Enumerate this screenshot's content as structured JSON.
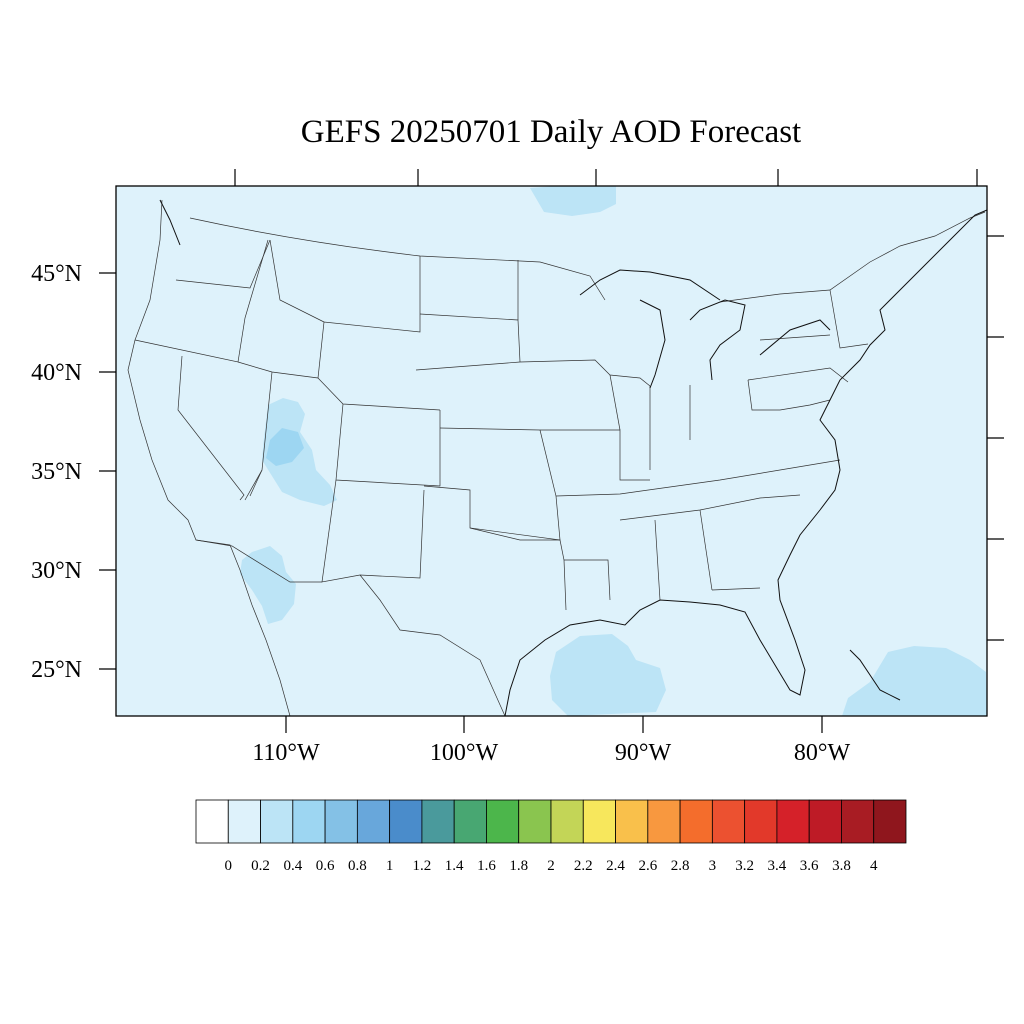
{
  "map": {
    "title": "GEFS 20250701 Daily AOD Forecast",
    "background_field": "0.2 - 0.4 AOD (light blue)",
    "field_color": "#def2fb",
    "latitude_labels": [
      "45°N",
      "40°N",
      "35°N",
      "30°N",
      "25°N"
    ],
    "longitude_labels": [
      "110°W",
      "100°W",
      "90°W",
      "80°W"
    ]
  },
  "colorbar": {
    "labels": [
      "0",
      "0.2",
      "0.4",
      "0.6",
      "0.8",
      "1",
      "1.2",
      "1.4",
      "1.6",
      "1.8",
      "2",
      "2.2",
      "2.4",
      "2.6",
      "2.8",
      "3",
      "3.2",
      "3.4",
      "3.6",
      "3.8",
      "4"
    ],
    "colors": [
      "#ffffff",
      "#def2fb",
      "#bce4f6",
      "#9dd6f2",
      "#84c1e6",
      "#68a7db",
      "#4a8ccb",
      "#4a9a9c",
      "#48a772",
      "#4cb64b",
      "#8ac54f",
      "#c3d557",
      "#f7e75c",
      "#f9c04b",
      "#f8983f",
      "#f46d2c",
      "#ec5130",
      "#e2392a",
      "#d52129",
      "#be1b26",
      "#a81c23",
      "#8f161d"
    ]
  },
  "aod_patches": [
    {
      "region": "Utah / Arizona plume",
      "level": "0.4 - 0.6"
    },
    {
      "region": "Southern Arizona",
      "level": "0.4 - 0.6"
    },
    {
      "region": "Gulf of Mexico",
      "level": "0.4 - 0.6"
    },
    {
      "region": "Bahamas",
      "level": "0.4 - 0.6"
    },
    {
      "region": "Lake Superior north",
      "level": "0.4 - 0.6"
    }
  ]
}
